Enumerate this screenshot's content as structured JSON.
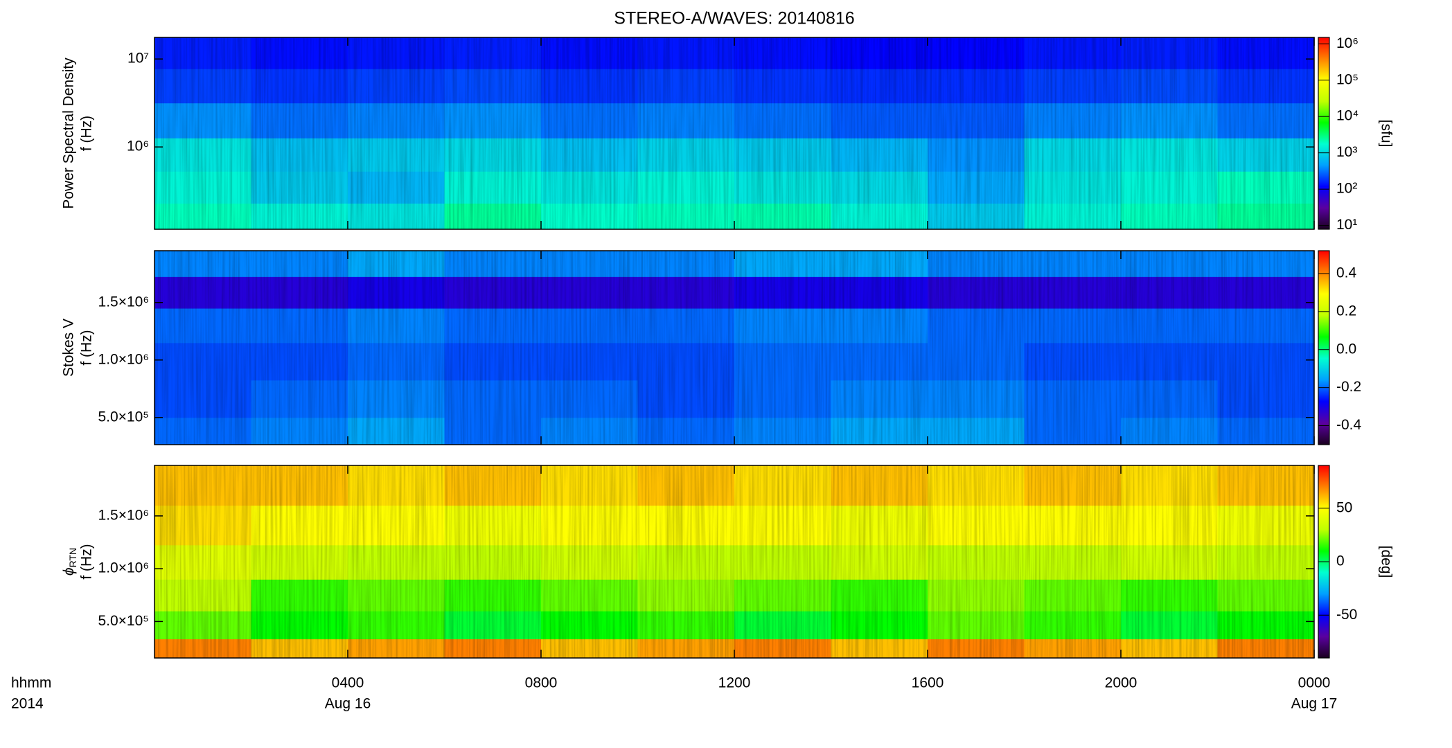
{
  "chart_data": [
    {
      "type": "heatmap",
      "title": "STEREO-A/WAVES: 20140816",
      "ylabel": [
        "Power Spectral Density",
        "f (Hz)"
      ],
      "xlim": [
        0,
        24
      ],
      "ylog": true,
      "ylim": [
        116000,
        17600000
      ],
      "yticks": [
        {
          "value": 1000000,
          "label": "10⁶"
        },
        {
          "value": 10000000,
          "label": "10⁷"
        }
      ],
      "x": [
        1,
        3,
        5,
        7,
        9,
        11,
        13,
        15,
        17,
        19,
        21,
        23
      ],
      "y": [
        150000,
        350000,
        800000,
        2000000,
        5000000,
        12000000
      ],
      "z": [
        [
          2000,
          1500,
          1200,
          2500,
          1800,
          2000,
          2200,
          1500,
          800,
          1500,
          2000,
          2500
        ],
        [
          1500,
          800,
          600,
          1500,
          1200,
          1500,
          1200,
          1000,
          500,
          1200,
          1500,
          2000
        ],
        [
          1200,
          700,
          800,
          1000,
          700,
          900,
          800,
          600,
          400,
          1000,
          1200,
          900
        ],
        [
          400,
          300,
          350,
          400,
          300,
          350,
          300,
          250,
          250,
          350,
          400,
          300
        ],
        [
          200,
          180,
          200,
          220,
          180,
          200,
          180,
          170,
          170,
          200,
          220,
          180
        ],
        [
          150,
          130,
          140,
          150,
          130,
          140,
          130,
          120,
          120,
          140,
          150,
          130
        ]
      ],
      "zlog": true,
      "zlim": [
        7.9,
        1500000
      ],
      "zticks": [
        {
          "value": 10,
          "label": "10¹"
        },
        {
          "value": 100,
          "label": "10²"
        },
        {
          "value": 1000,
          "label": "10³"
        },
        {
          "value": 10000,
          "label": "10⁴"
        },
        {
          "value": 100000,
          "label": "10⁵"
        },
        {
          "value": 1000000,
          "label": "10⁶"
        }
      ],
      "zlabel": "[sfu]",
      "colormap": [
        "#1a0020",
        "#5a00a0",
        "#0000ff",
        "#00a0ff",
        "#00ffd0",
        "#00ff00",
        "#c0ff00",
        "#ffff00",
        "#ff8000",
        "#ff0000"
      ]
    },
    {
      "type": "heatmap",
      "ylabel": [
        "Stokes V",
        "f (Hz)"
      ],
      "xlim": [
        0,
        24
      ],
      "ylog": false,
      "ylim": [
        264000,
        1950000
      ],
      "yticks": [
        {
          "value": 500000,
          "label": "5.0×10⁵"
        },
        {
          "value": 1000000,
          "label": "1.0×10⁶"
        },
        {
          "value": 1500000,
          "label": "1.5×10⁶"
        }
      ],
      "x": [
        1,
        3,
        5,
        7,
        9,
        11,
        13,
        15,
        17,
        19,
        21,
        23
      ],
      "y": [
        350000,
        650000,
        1000000,
        1300000,
        1600000,
        1850000
      ],
      "z": [
        [
          -0.2,
          -0.18,
          -0.15,
          -0.2,
          -0.18,
          -0.2,
          -0.18,
          -0.15,
          -0.15,
          -0.2,
          -0.18,
          -0.2
        ],
        [
          -0.22,
          -0.2,
          -0.18,
          -0.2,
          -0.2,
          -0.22,
          -0.2,
          -0.18,
          -0.18,
          -0.2,
          -0.2,
          -0.22
        ],
        [
          -0.22,
          -0.22,
          -0.2,
          -0.22,
          -0.22,
          -0.22,
          -0.2,
          -0.2,
          -0.2,
          -0.22,
          -0.22,
          -0.22
        ],
        [
          -0.2,
          -0.2,
          -0.18,
          -0.2,
          -0.2,
          -0.2,
          -0.18,
          -0.18,
          -0.2,
          -0.2,
          -0.2,
          -0.2
        ],
        [
          -0.32,
          -0.32,
          -0.3,
          -0.32,
          -0.32,
          -0.32,
          -0.3,
          -0.3,
          -0.32,
          -0.32,
          -0.32,
          -0.32
        ],
        [
          -0.18,
          -0.18,
          -0.15,
          -0.18,
          -0.18,
          -0.18,
          -0.15,
          -0.15,
          -0.18,
          -0.18,
          -0.18,
          -0.18
        ]
      ],
      "zlog": false,
      "zlim": [
        -0.5,
        0.52
      ],
      "zticks": [
        -0.4,
        -0.2,
        {
          "value": 0,
          "label": "0.0"
        },
        0.2,
        0.4
      ],
      "colormap": [
        "#1a0020",
        "#5a00a0",
        "#0000ff",
        "#00a0ff",
        "#00ffd0",
        "#00ff00",
        "#c0ff00",
        "#ffff00",
        "#ff8000",
        "#ff0000"
      ]
    },
    {
      "type": "heatmap",
      "ylabel_symbol": "ϕ",
      "ylabel_subscript": "RTN",
      "ylabel": [
        "f (Hz)"
      ],
      "xlim": [
        0,
        24
      ],
      "ylog": false,
      "ylim": [
        155000,
        1978000
      ],
      "yticks": [
        {
          "value": 500000,
          "label": "5.0×10⁵"
        },
        {
          "value": 1000000,
          "label": "1.0×10⁶"
        },
        {
          "value": 1500000,
          "label": "1.5×10⁶"
        }
      ],
      "xticks": [
        {
          "value": 4,
          "label": "0400"
        },
        {
          "value": 8,
          "label": "0800"
        },
        {
          "value": 12,
          "label": "1200"
        },
        {
          "value": 16,
          "label": "1600"
        },
        {
          "value": 20,
          "label": "2000"
        },
        {
          "value": 24,
          "label": "0000"
        }
      ],
      "date_labels": [
        {
          "value": 4,
          "label": "Aug 16"
        },
        {
          "value": 24,
          "label": "Aug 17"
        }
      ],
      "xlabel": [
        "hhmm",
        "2014"
      ],
      "x": [
        1,
        3,
        5,
        7,
        9,
        11,
        13,
        15,
        17,
        19,
        21,
        23
      ],
      "y": [
        220000,
        450000,
        750000,
        1050000,
        1400000,
        1800000
      ],
      "z": [
        [
          70,
          60,
          65,
          70,
          60,
          65,
          70,
          60,
          70,
          65,
          60,
          70
        ],
        [
          20,
          10,
          15,
          5,
          10,
          15,
          5,
          10,
          20,
          15,
          5,
          10
        ],
        [
          30,
          15,
          20,
          15,
          20,
          25,
          20,
          15,
          25,
          20,
          15,
          20
        ],
        [
          40,
          35,
          30,
          30,
          35,
          30,
          30,
          35,
          30,
          30,
          35,
          30
        ],
        [
          55,
          50,
          50,
          45,
          50,
          50,
          50,
          45,
          50,
          50,
          50,
          45
        ],
        [
          60,
          60,
          55,
          60,
          55,
          60,
          55,
          60,
          55,
          60,
          55,
          60
        ]
      ],
      "zlog": false,
      "zlim": [
        -90,
        90
      ],
      "zticks": [
        -50,
        0,
        50
      ],
      "zlabel": "[deg]",
      "colormap": [
        "#1a0020",
        "#5a00a0",
        "#0000ff",
        "#00a0ff",
        "#00ffd0",
        "#00ff00",
        "#c0ff00",
        "#ffff00",
        "#ff8000",
        "#ff0000"
      ]
    }
  ]
}
